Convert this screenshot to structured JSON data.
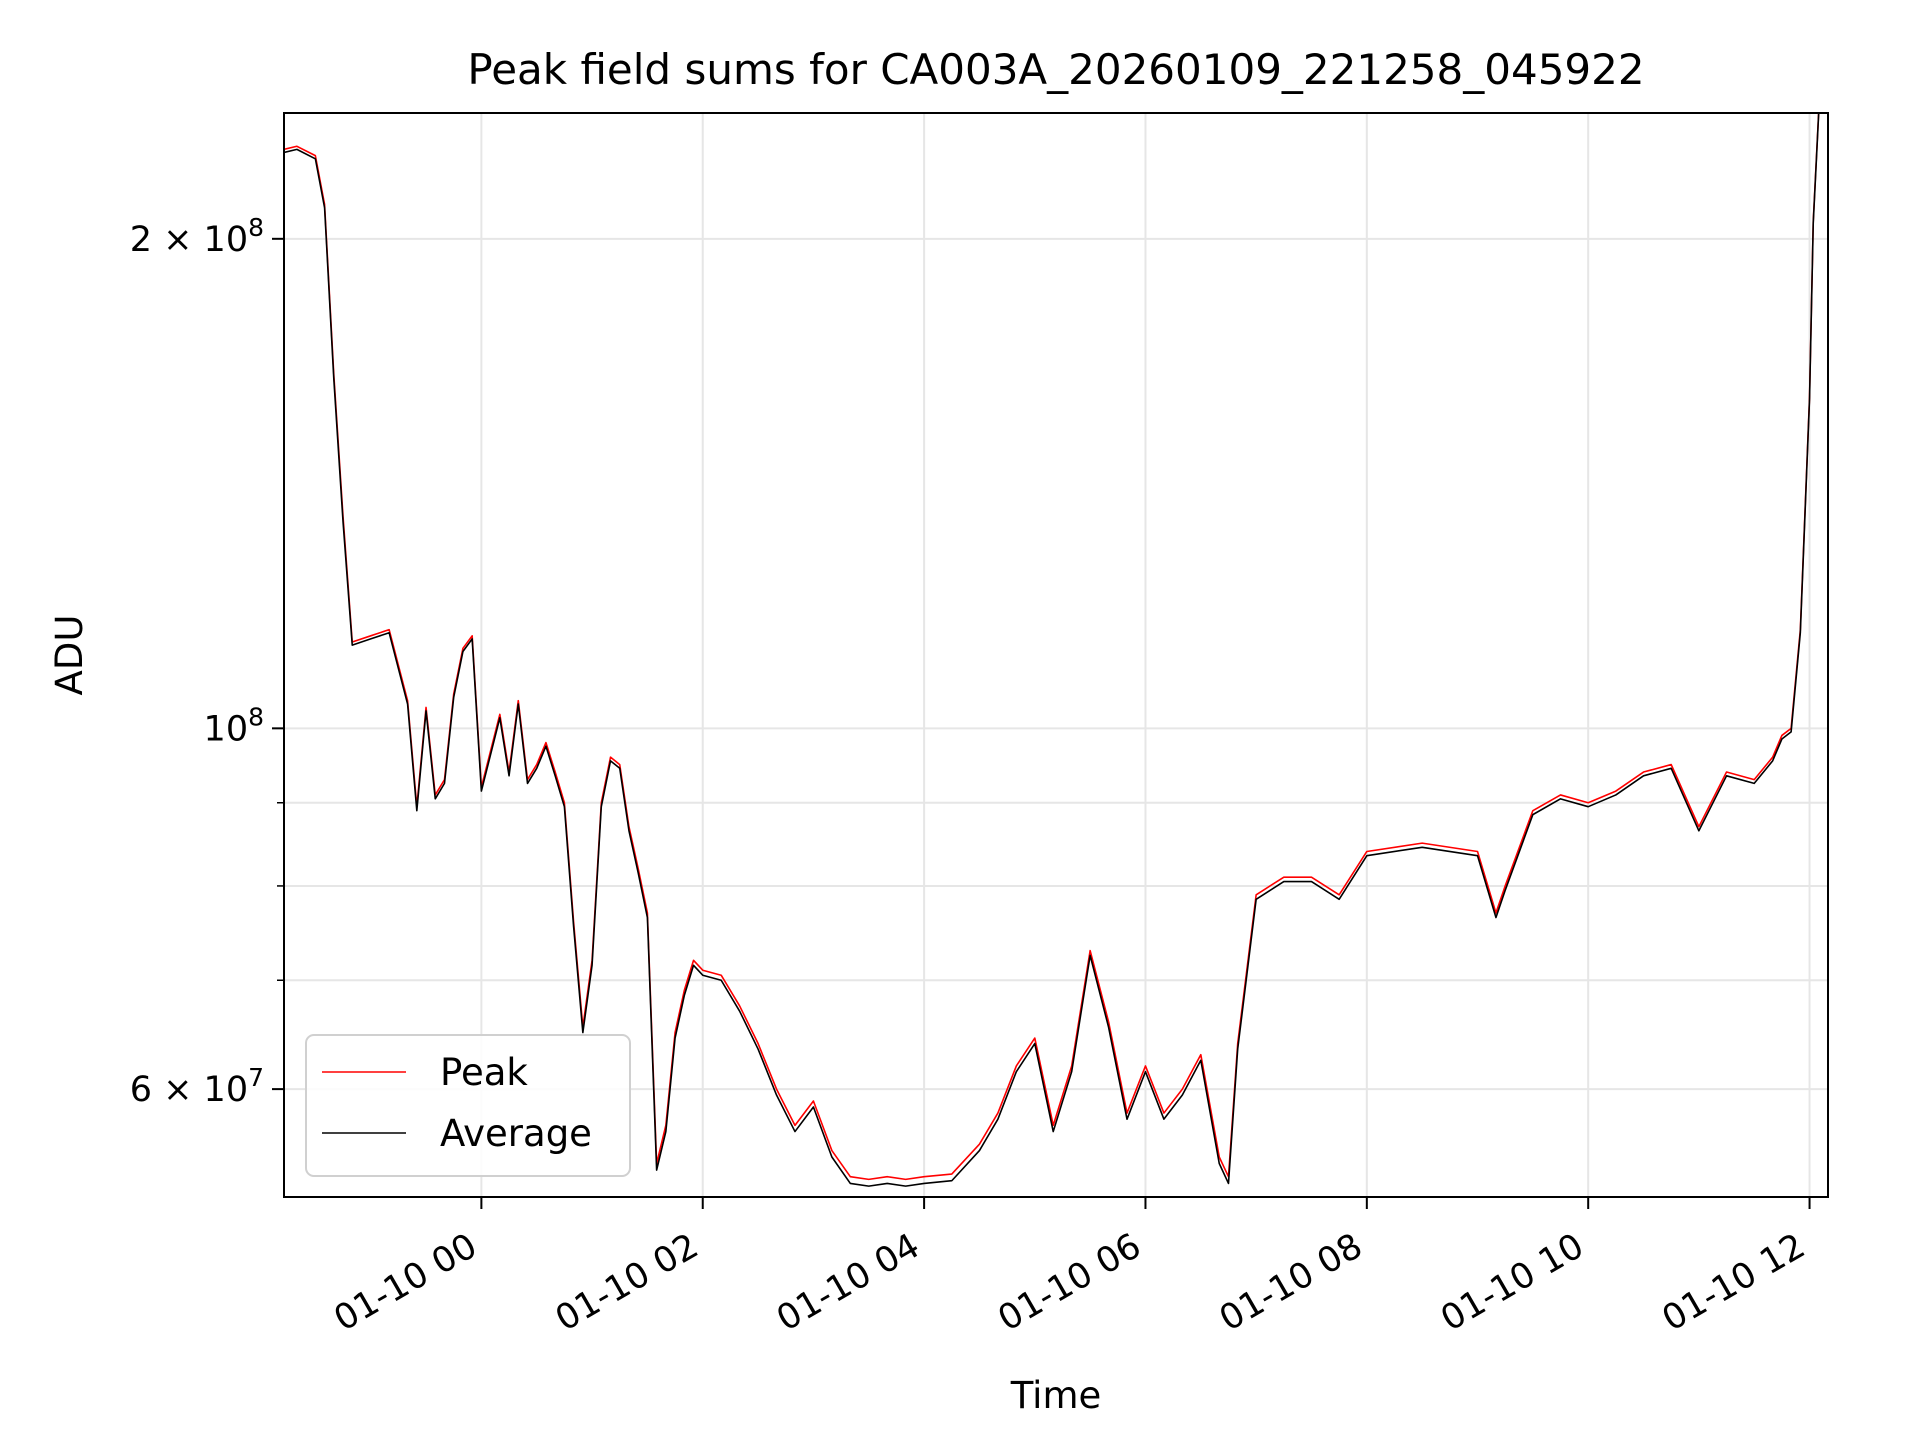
{
  "chart_data": {
    "type": "line",
    "title": "Peak field sums for CA003A_20260109_221258_045922",
    "xlabel": "Time",
    "ylabel": "ADU",
    "yscale": "log",
    "grid": true,
    "legend_position": "lower-left",
    "x_range": [
      "2026-01-09 22:13",
      "2026-01-10 12:10"
    ],
    "ylim": [
      51500000,
      239000000
    ],
    "x_ticks": [
      {
        "value": "2026-01-10 00:00",
        "label": "01-10 00"
      },
      {
        "value": "2026-01-10 02:00",
        "label": "01-10 02"
      },
      {
        "value": "2026-01-10 04:00",
        "label": "01-10 04"
      },
      {
        "value": "2026-01-10 06:00",
        "label": "01-10 06"
      },
      {
        "value": "2026-01-10 08:00",
        "label": "01-10 08"
      },
      {
        "value": "2026-01-10 10:00",
        "label": "01-10 10"
      },
      {
        "value": "2026-01-10 12:00",
        "label": "01-10 12"
      }
    ],
    "y_major_ticks": [
      {
        "value": 60000000,
        "mantissa": "6",
        "base": "10",
        "exponent": "7"
      },
      {
        "value": 100000000,
        "mantissa": "",
        "base": "10",
        "exponent": "8"
      },
      {
        "value": 200000000,
        "mantissa": "2",
        "base": "10",
        "exponent": "8"
      }
    ],
    "y_minor_ticks": [
      70000000,
      80000000,
      90000000
    ],
    "series": [
      {
        "name": "Peak",
        "color": "#ff0000",
        "x": [
          "2026-01-09 22:13",
          "2026-01-09 22:20",
          "2026-01-09 22:30",
          "2026-01-09 22:35",
          "2026-01-09 22:40",
          "2026-01-09 22:45",
          "2026-01-09 22:50",
          "2026-01-09 23:00",
          "2026-01-09 23:10",
          "2026-01-09 23:20",
          "2026-01-09 23:25",
          "2026-01-09 23:30",
          "2026-01-09 23:35",
          "2026-01-09 23:40",
          "2026-01-09 23:45",
          "2026-01-09 23:50",
          "2026-01-09 23:55",
          "2026-01-10 00:00",
          "2026-01-10 00:10",
          "2026-01-10 00:15",
          "2026-01-10 00:20",
          "2026-01-10 00:25",
          "2026-01-10 00:30",
          "2026-01-10 00:35",
          "2026-01-10 00:40",
          "2026-01-10 00:45",
          "2026-01-10 00:50",
          "2026-01-10 00:55",
          "2026-01-10 01:00",
          "2026-01-10 01:05",
          "2026-01-10 01:10",
          "2026-01-10 01:15",
          "2026-01-10 01:20",
          "2026-01-10 01:25",
          "2026-01-10 01:30",
          "2026-01-10 01:35",
          "2026-01-10 01:40",
          "2026-01-10 01:45",
          "2026-01-10 01:50",
          "2026-01-10 01:55",
          "2026-01-10 02:00",
          "2026-01-10 02:10",
          "2026-01-10 02:20",
          "2026-01-10 02:30",
          "2026-01-10 02:40",
          "2026-01-10 02:50",
          "2026-01-10 03:00",
          "2026-01-10 03:10",
          "2026-01-10 03:20",
          "2026-01-10 03:30",
          "2026-01-10 03:40",
          "2026-01-10 03:50",
          "2026-01-10 04:00",
          "2026-01-10 04:15",
          "2026-01-10 04:30",
          "2026-01-10 04:40",
          "2026-01-10 04:50",
          "2026-01-10 05:00",
          "2026-01-10 05:10",
          "2026-01-10 05:20",
          "2026-01-10 05:30",
          "2026-01-10 05:40",
          "2026-01-10 05:50",
          "2026-01-10 06:00",
          "2026-01-10 06:10",
          "2026-01-10 06:20",
          "2026-01-10 06:30",
          "2026-01-10 06:40",
          "2026-01-10 06:45",
          "2026-01-10 06:50",
          "2026-01-10 07:00",
          "2026-01-10 07:15",
          "2026-01-10 07:30",
          "2026-01-10 07:45",
          "2026-01-10 08:00",
          "2026-01-10 08:30",
          "2026-01-10 09:00",
          "2026-01-10 09:10",
          "2026-01-10 09:15",
          "2026-01-10 09:30",
          "2026-01-10 09:45",
          "2026-01-10 10:00",
          "2026-01-10 10:15",
          "2026-01-10 10:30",
          "2026-01-10 10:45",
          "2026-01-10 11:00",
          "2026-01-10 11:15",
          "2026-01-10 11:30",
          "2026-01-10 11:40",
          "2026-01-10 11:45",
          "2026-01-10 11:50",
          "2026-01-10 11:55",
          "2026-01-10 12:00",
          "2026-01-10 12:02",
          "2026-01-10 12:05"
        ],
        "values": [
          227000000,
          228000000,
          225000000,
          210000000,
          165000000,
          135000000,
          113000000,
          114000000,
          115000000,
          104000000,
          89500000,
          103000000,
          91000000,
          93000000,
          105000000,
          112000000,
          114000000,
          92000000,
          102000000,
          94000000,
          104000000,
          93000000,
          95000000,
          98000000,
          94000000,
          90000000,
          76000000,
          65500000,
          72000000,
          90000000,
          96000000,
          95000000,
          87000000,
          82000000,
          77000000,
          54000000,
          57000000,
          65000000,
          69000000,
          72000000,
          71000000,
          70500000,
          67500000,
          64000000,
          60000000,
          57000000,
          59000000,
          55000000,
          53000000,
          52800000,
          53000000,
          52800000,
          53000000,
          53200000,
          55500000,
          58000000,
          62000000,
          64500000,
          57000000,
          62000000,
          73000000,
          66000000,
          58000000,
          62000000,
          58000000,
          60000000,
          63000000,
          54500000,
          53000000,
          64000000,
          79000000,
          81000000,
          81000000,
          79000000,
          84000000,
          85000000,
          84000000,
          77000000,
          80000000,
          89000000,
          91000000,
          90000000,
          91500000,
          94000000,
          95000000,
          87000000,
          94000000,
          93000000,
          96000000,
          99000000,
          100000000,
          115000000,
          160000000,
          205000000,
          240000000
        ]
      },
      {
        "name": "Average",
        "color": "#000000",
        "x": [
          "2026-01-09 22:13",
          "2026-01-09 22:20",
          "2026-01-09 22:30",
          "2026-01-09 22:35",
          "2026-01-09 22:40",
          "2026-01-09 22:45",
          "2026-01-09 22:50",
          "2026-01-09 23:00",
          "2026-01-09 23:10",
          "2026-01-09 23:20",
          "2026-01-09 23:25",
          "2026-01-09 23:30",
          "2026-01-09 23:35",
          "2026-01-09 23:40",
          "2026-01-09 23:45",
          "2026-01-09 23:50",
          "2026-01-09 23:55",
          "2026-01-10 00:00",
          "2026-01-10 00:10",
          "2026-01-10 00:15",
          "2026-01-10 00:20",
          "2026-01-10 00:25",
          "2026-01-10 00:30",
          "2026-01-10 00:35",
          "2026-01-10 00:40",
          "2026-01-10 00:45",
          "2026-01-10 00:50",
          "2026-01-10 00:55",
          "2026-01-10 01:00",
          "2026-01-10 01:05",
          "2026-01-10 01:10",
          "2026-01-10 01:15",
          "2026-01-10 01:20",
          "2026-01-10 01:25",
          "2026-01-10 01:30",
          "2026-01-10 01:35",
          "2026-01-10 01:40",
          "2026-01-10 01:45",
          "2026-01-10 01:50",
          "2026-01-10 01:55",
          "2026-01-10 02:00",
          "2026-01-10 02:10",
          "2026-01-10 02:20",
          "2026-01-10 02:30",
          "2026-01-10 02:40",
          "2026-01-10 02:50",
          "2026-01-10 03:00",
          "2026-01-10 03:10",
          "2026-01-10 03:20",
          "2026-01-10 03:30",
          "2026-01-10 03:40",
          "2026-01-10 03:50",
          "2026-01-10 04:00",
          "2026-01-10 04:15",
          "2026-01-10 04:30",
          "2026-01-10 04:40",
          "2026-01-10 04:50",
          "2026-01-10 05:00",
          "2026-01-10 05:10",
          "2026-01-10 05:20",
          "2026-01-10 05:30",
          "2026-01-10 05:40",
          "2026-01-10 05:50",
          "2026-01-10 06:00",
          "2026-01-10 06:10",
          "2026-01-10 06:20",
          "2026-01-10 06:30",
          "2026-01-10 06:40",
          "2026-01-10 06:45",
          "2026-01-10 06:50",
          "2026-01-10 07:00",
          "2026-01-10 07:15",
          "2026-01-10 07:30",
          "2026-01-10 07:45",
          "2026-01-10 08:00",
          "2026-01-10 08:30",
          "2026-01-10 09:00",
          "2026-01-10 09:10",
          "2026-01-10 09:15",
          "2026-01-10 09:30",
          "2026-01-10 09:45",
          "2026-01-10 10:00",
          "2026-01-10 10:15",
          "2026-01-10 10:30",
          "2026-01-10 10:45",
          "2026-01-10 11:00",
          "2026-01-10 11:15",
          "2026-01-10 11:30",
          "2026-01-10 11:40",
          "2026-01-10 11:45",
          "2026-01-10 11:50",
          "2026-01-10 11:55",
          "2026-01-10 12:00",
          "2026-01-10 12:02",
          "2026-01-10 12:05"
        ],
        "values": [
          226000000,
          227000000,
          224000000,
          209000000,
          164000000,
          134000000,
          112500000,
          113500000,
          114500000,
          103500000,
          89000000,
          102500000,
          90500000,
          92500000,
          104500000,
          111500000,
          113500000,
          91500000,
          101500000,
          93500000,
          103500000,
          92500000,
          94500000,
          97500000,
          93500000,
          89500000,
          75500000,
          65000000,
          71500000,
          89500000,
          95500000,
          94500000,
          86500000,
          81500000,
          76500000,
          53500000,
          56500000,
          64500000,
          68500000,
          71500000,
          70500000,
          70000000,
          67000000,
          63500000,
          59500000,
          56500000,
          58500000,
          54500000,
          52500000,
          52300000,
          52500000,
          52300000,
          52500000,
          52700000,
          55000000,
          57500000,
          61500000,
          64000000,
          56500000,
          61500000,
          72500000,
          65500000,
          57500000,
          61500000,
          57500000,
          59500000,
          62500000,
          54000000,
          52500000,
          63500000,
          78500000,
          80500000,
          80500000,
          78500000,
          83500000,
          84500000,
          83500000,
          76500000,
          79500000,
          88500000,
          90500000,
          89500000,
          91000000,
          93500000,
          94500000,
          86500000,
          93500000,
          92500000,
          95500000,
          98500000,
          99500000,
          114500000,
          159500000,
          204500000,
          239500000
        ]
      }
    ]
  }
}
